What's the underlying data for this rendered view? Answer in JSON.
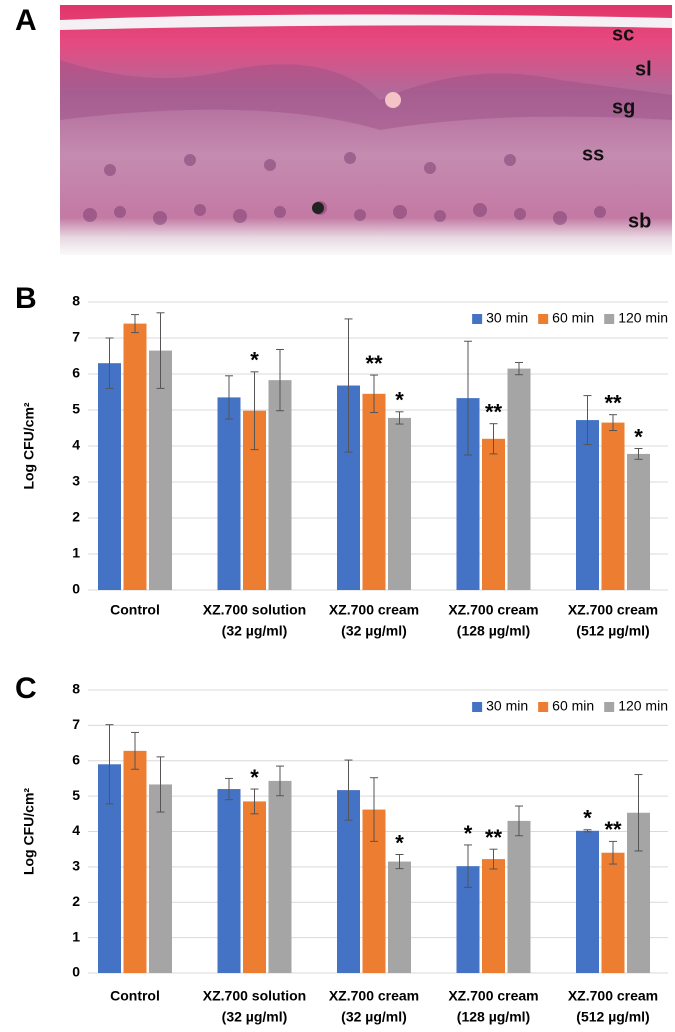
{
  "figure": {
    "panel_labels": [
      "A",
      "B",
      "C"
    ],
    "layer_labels": [
      "sc",
      "sl",
      "sg",
      "ss",
      "sb"
    ]
  },
  "chart_data": [
    {
      "type": "bar",
      "ylabel": "Log CFU/cm²",
      "ylim": [
        0,
        8
      ],
      "yticks": [
        0,
        1,
        2,
        3,
        4,
        5,
        6,
        7,
        8
      ],
      "grid": true,
      "legend": "top-right",
      "categories": [
        [
          "Control"
        ],
        [
          "XZ.700 solution",
          "(32 µg/ml)"
        ],
        [
          "XZ.700 cream",
          "(32 µg/ml)"
        ],
        [
          "XZ.700 cream",
          "(128 µg/ml)"
        ],
        [
          "XZ.700 cream",
          "(512 µg/ml)"
        ]
      ],
      "series": [
        {
          "name": "30 min",
          "color": "#4472c4",
          "values": [
            6.3,
            5.35,
            5.68,
            5.33,
            4.72
          ],
          "errors": [
            0.7,
            0.6,
            1.85,
            1.58,
            0.68
          ],
          "annotations": [
            null,
            null,
            null,
            null,
            null
          ]
        },
        {
          "name": "60 min",
          "color": "#ed7d31",
          "values": [
            7.4,
            4.98,
            5.45,
            4.2,
            4.65
          ],
          "errors": [
            0.25,
            1.08,
            0.52,
            0.42,
            0.22
          ],
          "annotations": [
            null,
            "*",
            "**",
            "**",
            "**"
          ]
        },
        {
          "name": "120 min",
          "color": "#a5a5a5",
          "values": [
            6.65,
            5.83,
            4.78,
            6.15,
            3.78
          ],
          "errors": [
            1.05,
            0.85,
            0.17,
            0.17,
            0.15
          ],
          "annotations": [
            null,
            null,
            "*",
            null,
            "*"
          ]
        }
      ]
    },
    {
      "type": "bar",
      "ylabel": "Log CFU/cm²",
      "ylim": [
        0,
        8
      ],
      "yticks": [
        0,
        1,
        2,
        3,
        4,
        5,
        6,
        7,
        8
      ],
      "grid": true,
      "legend": "top-right",
      "categories": [
        [
          "Control"
        ],
        [
          "XZ.700 solution",
          "(32 µg/ml)"
        ],
        [
          "XZ.700 cream",
          "(32 µg/ml)"
        ],
        [
          "XZ.700 cream",
          "(128 µg/ml)"
        ],
        [
          "XZ.700 cream",
          "(512 µg/ml)"
        ]
      ],
      "series": [
        {
          "name": "30 min",
          "color": "#4472c4",
          "values": [
            5.9,
            5.2,
            5.17,
            3.02,
            4.02
          ],
          "errors": [
            1.12,
            0.3,
            0.85,
            0.6,
            0.03
          ],
          "annotations": [
            null,
            null,
            null,
            "*",
            "*"
          ]
        },
        {
          "name": "60 min",
          "color": "#ed7d31",
          "values": [
            6.28,
            4.85,
            4.62,
            3.22,
            3.4
          ],
          "errors": [
            0.52,
            0.35,
            0.9,
            0.28,
            0.32
          ],
          "annotations": [
            null,
            "*",
            null,
            "**",
            "**"
          ]
        },
        {
          "name": "120 min",
          "color": "#a5a5a5",
          "values": [
            5.33,
            5.43,
            3.15,
            4.3,
            4.53
          ],
          "errors": [
            0.78,
            0.42,
            0.2,
            0.42,
            1.08
          ],
          "annotations": [
            null,
            null,
            "*",
            null,
            null
          ]
        }
      ]
    }
  ]
}
